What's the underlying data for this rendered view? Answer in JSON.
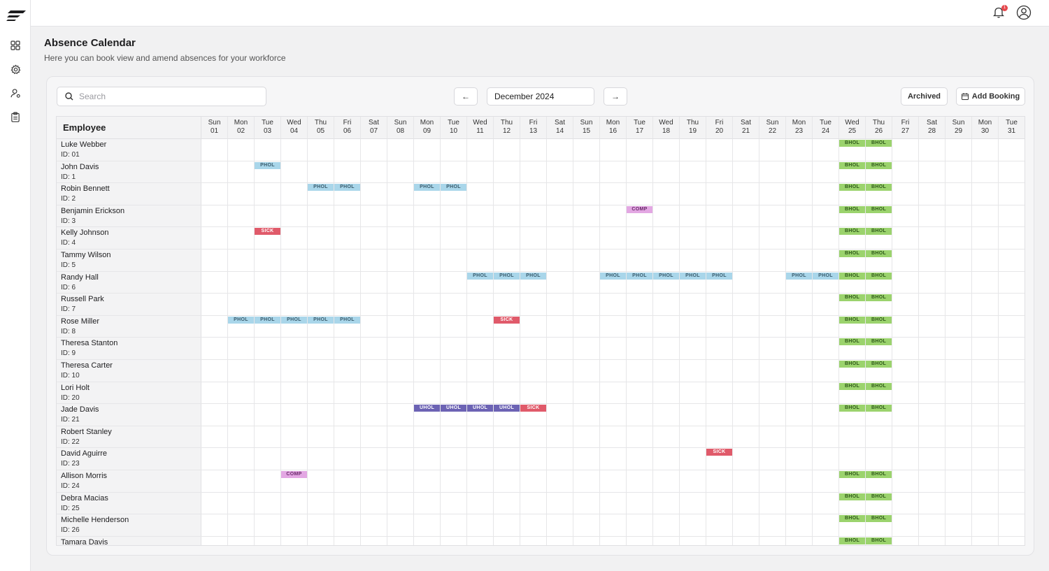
{
  "header": {
    "title": "Absence Calendar",
    "subtitle": "Here you can book view and amend absences for your workforce",
    "notification_count": "1"
  },
  "toolbar": {
    "search_placeholder": "Search",
    "month": "December 2024",
    "prev_label": "←",
    "next_label": "→",
    "archived_label": "Archived",
    "add_booking_label": "Add Booking"
  },
  "colors": {
    "PHOL": {
      "bg": "#a9d6ea",
      "fg": "#3b5d6e"
    },
    "BHOL": {
      "bg": "#9bd36d",
      "fg": "#2f5a1a"
    },
    "SICK": {
      "bg": "#e05a6a",
      "fg": "#ffffff"
    },
    "COMP": {
      "bg": "#e3a7e3",
      "fg": "#6b2b6b"
    },
    "UHOL": {
      "bg": "#6c63b4",
      "fg": "#ffffff"
    }
  },
  "table": {
    "employee_header": "Employee",
    "days": [
      {
        "dow": "Sun",
        "num": "01"
      },
      {
        "dow": "Mon",
        "num": "02"
      },
      {
        "dow": "Tue",
        "num": "03"
      },
      {
        "dow": "Wed",
        "num": "04"
      },
      {
        "dow": "Thu",
        "num": "05"
      },
      {
        "dow": "Fri",
        "num": "06"
      },
      {
        "dow": "Sat",
        "num": "07"
      },
      {
        "dow": "Sun",
        "num": "08"
      },
      {
        "dow": "Mon",
        "num": "09"
      },
      {
        "dow": "Tue",
        "num": "10"
      },
      {
        "dow": "Wed",
        "num": "11"
      },
      {
        "dow": "Thu",
        "num": "12"
      },
      {
        "dow": "Fri",
        "num": "13"
      },
      {
        "dow": "Sat",
        "num": "14"
      },
      {
        "dow": "Sun",
        "num": "15"
      },
      {
        "dow": "Mon",
        "num": "16"
      },
      {
        "dow": "Tue",
        "num": "17"
      },
      {
        "dow": "Wed",
        "num": "18"
      },
      {
        "dow": "Thu",
        "num": "19"
      },
      {
        "dow": "Fri",
        "num": "20"
      },
      {
        "dow": "Sat",
        "num": "21"
      },
      {
        "dow": "Sun",
        "num": "22"
      },
      {
        "dow": "Mon",
        "num": "23"
      },
      {
        "dow": "Tue",
        "num": "24"
      },
      {
        "dow": "Wed",
        "num": "25"
      },
      {
        "dow": "Thu",
        "num": "26"
      },
      {
        "dow": "Fri",
        "num": "27"
      },
      {
        "dow": "Sat",
        "num": "28"
      },
      {
        "dow": "Sun",
        "num": "29"
      },
      {
        "dow": "Mon",
        "num": "30"
      },
      {
        "dow": "Tue",
        "num": "31"
      }
    ],
    "employees": [
      {
        "name": "Luke Webber",
        "id": "ID: 01",
        "absences": [
          {
            "type": "BHOL",
            "days": [
              25,
              26
            ]
          }
        ]
      },
      {
        "name": "John Davis",
        "id": "ID: 1",
        "absences": [
          {
            "type": "PHOL",
            "days": [
              3
            ]
          },
          {
            "type": "BHOL",
            "days": [
              25,
              26
            ]
          }
        ]
      },
      {
        "name": "Robin Bennett",
        "id": "ID: 2",
        "absences": [
          {
            "type": "PHOL",
            "days": [
              5,
              6,
              9,
              10
            ]
          },
          {
            "type": "BHOL",
            "days": [
              25,
              26
            ]
          }
        ]
      },
      {
        "name": "Benjamin Erickson",
        "id": "ID: 3",
        "absences": [
          {
            "type": "COMP",
            "days": [
              17
            ]
          },
          {
            "type": "BHOL",
            "days": [
              25,
              26
            ]
          }
        ]
      },
      {
        "name": "Kelly Johnson",
        "id": "ID: 4",
        "absences": [
          {
            "type": "SICK",
            "days": [
              3
            ]
          },
          {
            "type": "BHOL",
            "days": [
              25,
              26
            ]
          }
        ]
      },
      {
        "name": "Tammy Wilson",
        "id": "ID: 5",
        "absences": [
          {
            "type": "BHOL",
            "days": [
              25,
              26
            ]
          }
        ]
      },
      {
        "name": "Randy Hall",
        "id": "ID: 6",
        "absences": [
          {
            "type": "PHOL",
            "days": [
              11,
              12,
              13,
              16,
              17,
              18,
              19,
              20,
              23,
              24
            ]
          },
          {
            "type": "BHOL",
            "days": [
              25,
              26
            ]
          }
        ]
      },
      {
        "name": "Russell Park",
        "id": "ID: 7",
        "absences": [
          {
            "type": "BHOL",
            "days": [
              25,
              26
            ]
          }
        ]
      },
      {
        "name": "Rose Miller",
        "id": "ID: 8",
        "absences": [
          {
            "type": "PHOL",
            "days": [
              2,
              3,
              4,
              5,
              6
            ]
          },
          {
            "type": "SICK",
            "days": [
              12
            ]
          },
          {
            "type": "BHOL",
            "days": [
              25,
              26
            ]
          }
        ]
      },
      {
        "name": "Theresa Stanton",
        "id": "ID: 9",
        "absences": [
          {
            "type": "BHOL",
            "days": [
              25,
              26
            ]
          }
        ]
      },
      {
        "name": "Theresa Carter",
        "id": "ID: 10",
        "absences": [
          {
            "type": "BHOL",
            "days": [
              25,
              26
            ]
          }
        ]
      },
      {
        "name": "Lori Holt",
        "id": "ID: 20",
        "absences": [
          {
            "type": "BHOL",
            "days": [
              25,
              26
            ]
          }
        ]
      },
      {
        "name": "Jade Davis",
        "id": "ID: 21",
        "absences": [
          {
            "type": "UHOL",
            "days": [
              9,
              10,
              11,
              12
            ]
          },
          {
            "type": "SICK",
            "days": [
              13
            ]
          },
          {
            "type": "BHOL",
            "days": [
              25,
              26
            ]
          }
        ]
      },
      {
        "name": "Robert Stanley",
        "id": "ID: 22",
        "absences": []
      },
      {
        "name": "David Aguirre",
        "id": "ID: 23",
        "absences": [
          {
            "type": "SICK",
            "days": [
              20
            ]
          }
        ]
      },
      {
        "name": "Allison Morris",
        "id": "ID: 24",
        "absences": [
          {
            "type": "COMP",
            "days": [
              4
            ]
          },
          {
            "type": "BHOL",
            "days": [
              25,
              26
            ]
          }
        ]
      },
      {
        "name": "Debra Macias",
        "id": "ID: 25",
        "absences": [
          {
            "type": "BHOL",
            "days": [
              25,
              26
            ]
          }
        ]
      },
      {
        "name": "Michelle Henderson",
        "id": "ID: 26",
        "absences": [
          {
            "type": "BHOL",
            "days": [
              25,
              26
            ]
          }
        ]
      },
      {
        "name": "Tamara Davis",
        "id": "",
        "absences": [
          {
            "type": "BHOL",
            "days": [
              25,
              26
            ]
          }
        ]
      }
    ]
  }
}
